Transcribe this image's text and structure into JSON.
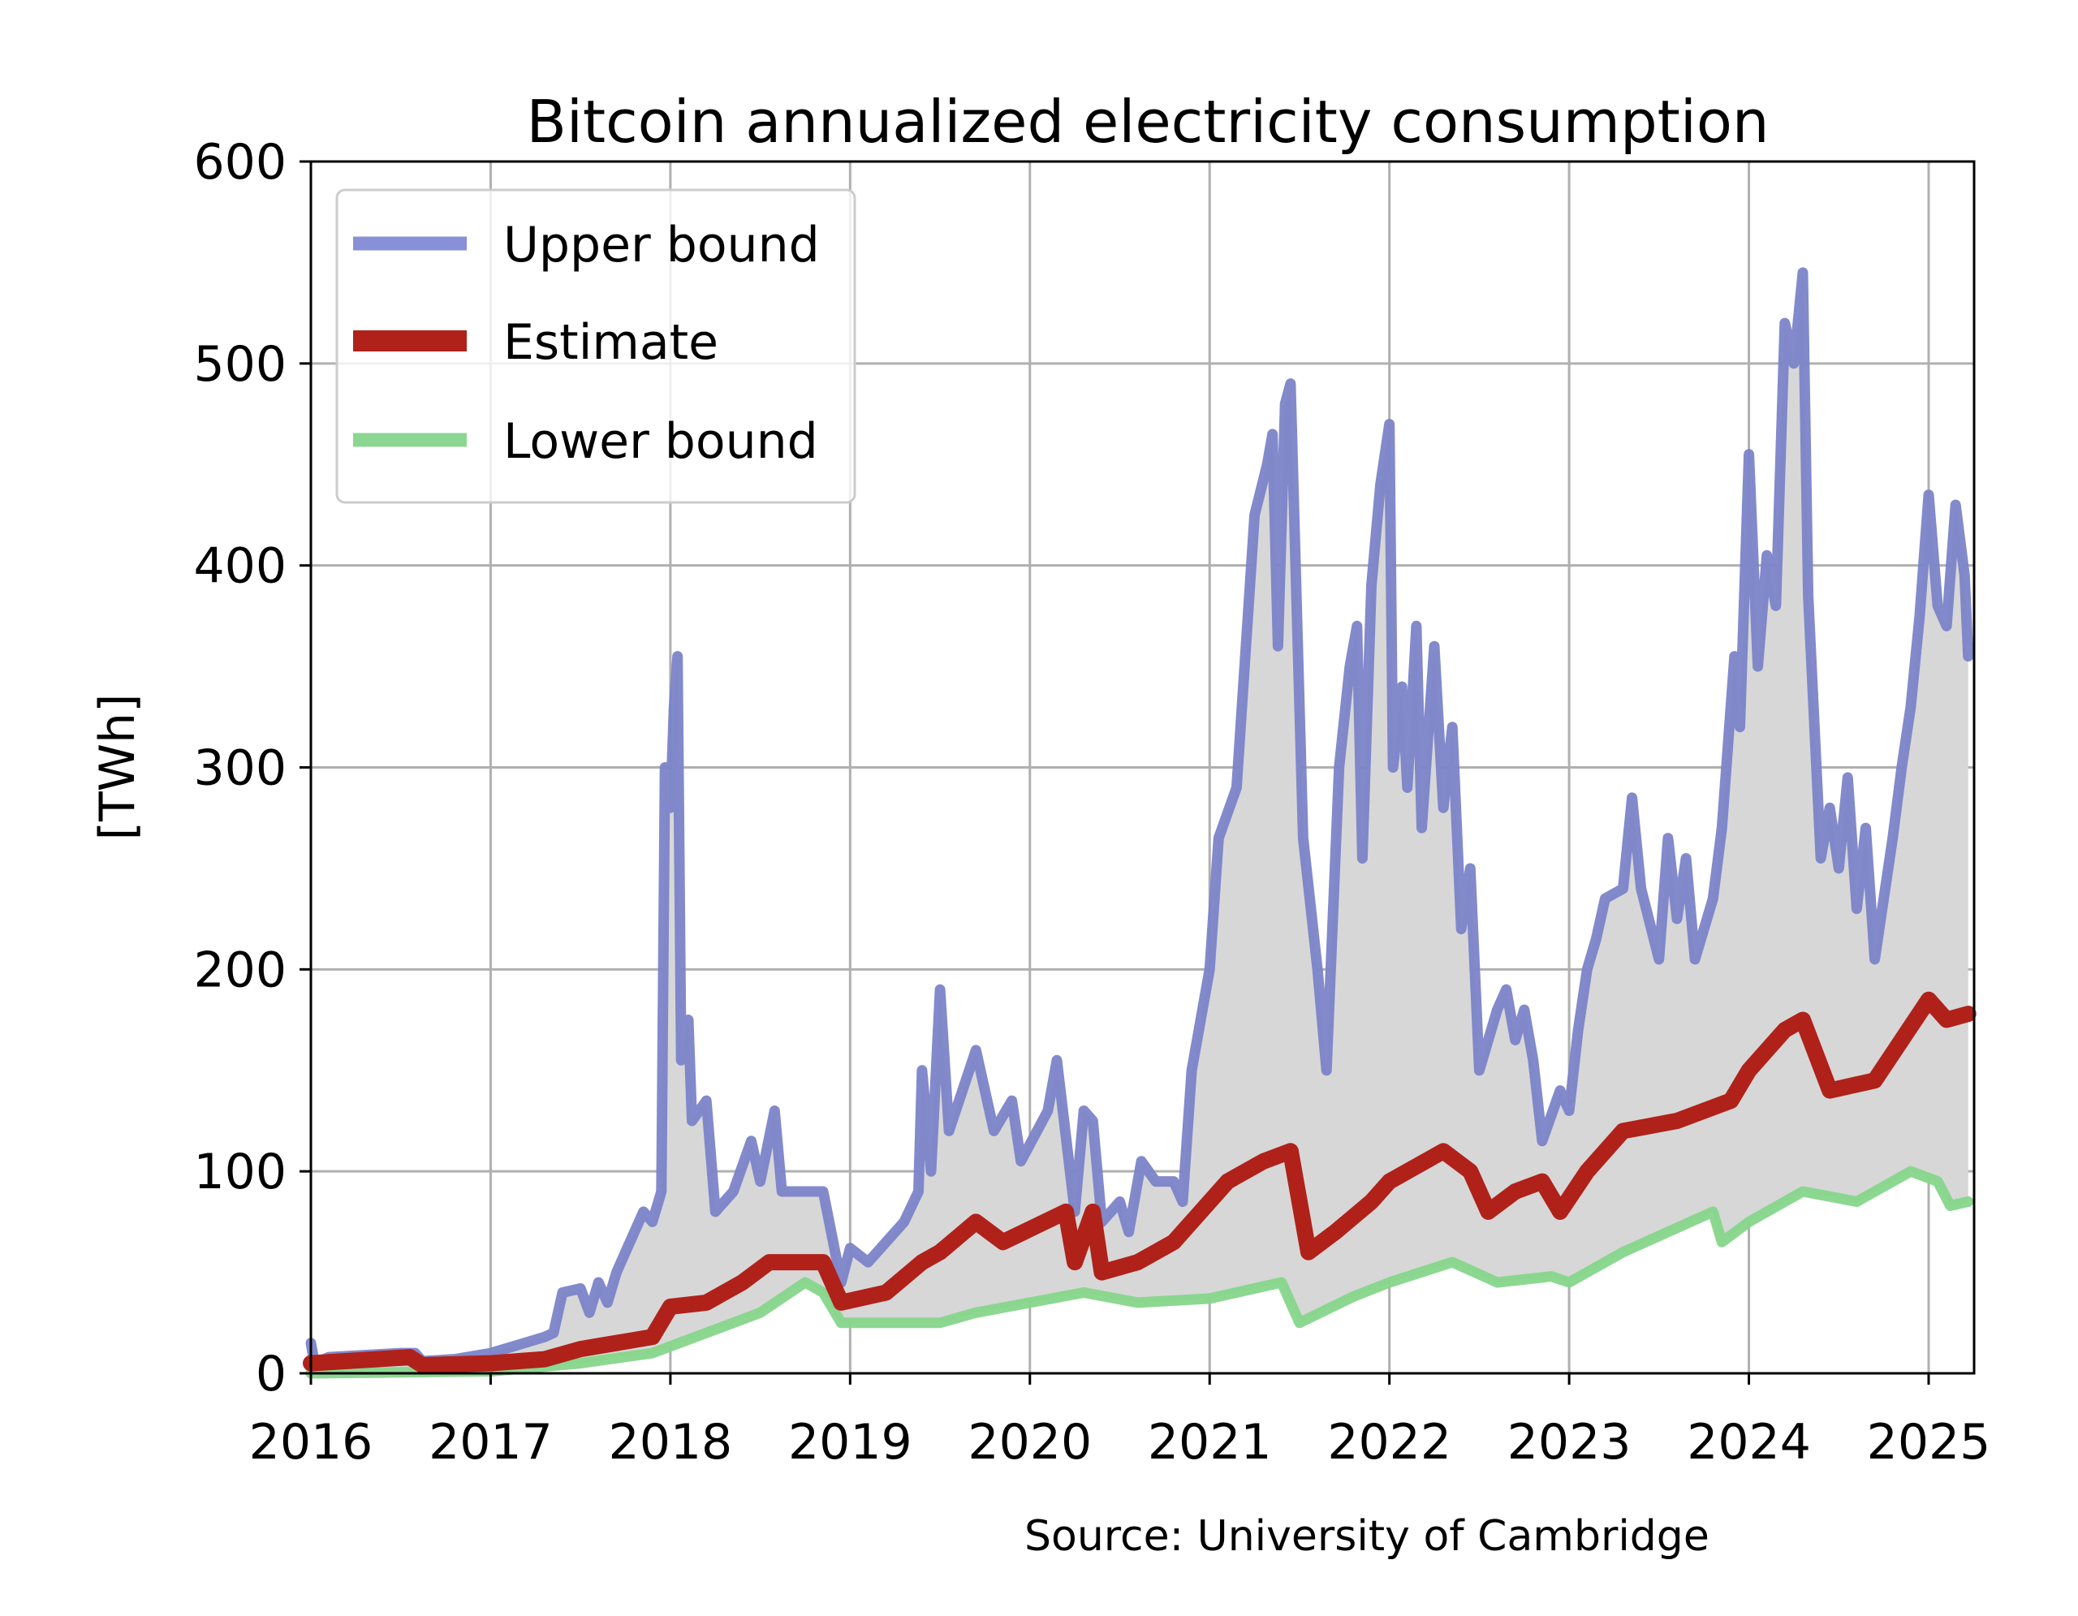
{
  "chart_data": {
    "type": "line",
    "title": "Bitcoin annualized electricity consumption",
    "xlabel": "",
    "ylabel": "[TWh]",
    "xlim": [
      2016,
      2025.25
    ],
    "ylim": [
      0,
      600
    ],
    "xticks": [
      "2016",
      "2017",
      "2018",
      "2019",
      "2020",
      "2021",
      "2022",
      "2023",
      "2024",
      "2025"
    ],
    "yticks": [
      "0",
      "100",
      "200",
      "300",
      "400",
      "500",
      "600"
    ],
    "grid": true,
    "legend_position": "top-left",
    "fill_between": [
      "Lower bound",
      "Upper bound"
    ],
    "annotation": "Source: University of Cambridge",
    "series": [
      {
        "name": "Upper bound",
        "color": "#7b84c9",
        "points": [
          [
            2016.0,
            15
          ],
          [
            2016.02,
            5
          ],
          [
            2016.1,
            8
          ],
          [
            2016.3,
            9
          ],
          [
            2016.5,
            10
          ],
          [
            2016.58,
            10
          ],
          [
            2016.62,
            6
          ],
          [
            2016.8,
            7
          ],
          [
            2017.0,
            10
          ],
          [
            2017.15,
            14
          ],
          [
            2017.3,
            18
          ],
          [
            2017.35,
            20
          ],
          [
            2017.4,
            40
          ],
          [
            2017.5,
            42
          ],
          [
            2017.55,
            30
          ],
          [
            2017.6,
            45
          ],
          [
            2017.65,
            35
          ],
          [
            2017.7,
            50
          ],
          [
            2017.75,
            60
          ],
          [
            2017.85,
            80
          ],
          [
            2017.9,
            75
          ],
          [
            2017.95,
            90
          ],
          [
            2017.97,
            300
          ],
          [
            2018.0,
            280
          ],
          [
            2018.02,
            330
          ],
          [
            2018.04,
            355
          ],
          [
            2018.06,
            155
          ],
          [
            2018.1,
            175
          ],
          [
            2018.12,
            125
          ],
          [
            2018.2,
            135
          ],
          [
            2018.25,
            80
          ],
          [
            2018.35,
            90
          ],
          [
            2018.45,
            115
          ],
          [
            2018.5,
            95
          ],
          [
            2018.58,
            130
          ],
          [
            2018.62,
            90
          ],
          [
            2018.7,
            90
          ],
          [
            2018.85,
            90
          ],
          [
            2018.95,
            45
          ],
          [
            2019.0,
            62
          ],
          [
            2019.1,
            55
          ],
          [
            2019.2,
            65
          ],
          [
            2019.3,
            75
          ],
          [
            2019.38,
            90
          ],
          [
            2019.4,
            150
          ],
          [
            2019.45,
            100
          ],
          [
            2019.5,
            190
          ],
          [
            2019.55,
            120
          ],
          [
            2019.7,
            160
          ],
          [
            2019.8,
            120
          ],
          [
            2019.9,
            135
          ],
          [
            2019.95,
            105
          ],
          [
            2020.1,
            130
          ],
          [
            2020.15,
            155
          ],
          [
            2020.25,
            80
          ],
          [
            2020.3,
            130
          ],
          [
            2020.35,
            125
          ],
          [
            2020.4,
            75
          ],
          [
            2020.5,
            85
          ],
          [
            2020.55,
            70
          ],
          [
            2020.62,
            105
          ],
          [
            2020.7,
            95
          ],
          [
            2020.8,
            95
          ],
          [
            2020.85,
            85
          ],
          [
            2020.9,
            150
          ],
          [
            2021.0,
            200
          ],
          [
            2021.05,
            265
          ],
          [
            2021.15,
            290
          ],
          [
            2021.25,
            425
          ],
          [
            2021.32,
            450
          ],
          [
            2021.35,
            465
          ],
          [
            2021.38,
            360
          ],
          [
            2021.42,
            480
          ],
          [
            2021.45,
            490
          ],
          [
            2021.52,
            265
          ],
          [
            2021.6,
            200
          ],
          [
            2021.65,
            150
          ],
          [
            2021.72,
            300
          ],
          [
            2021.78,
            350
          ],
          [
            2021.82,
            370
          ],
          [
            2021.85,
            255
          ],
          [
            2021.9,
            390
          ],
          [
            2021.95,
            440
          ],
          [
            2022.0,
            470
          ],
          [
            2022.02,
            300
          ],
          [
            2022.07,
            340
          ],
          [
            2022.1,
            290
          ],
          [
            2022.15,
            370
          ],
          [
            2022.18,
            270
          ],
          [
            2022.25,
            360
          ],
          [
            2022.3,
            280
          ],
          [
            2022.35,
            320
          ],
          [
            2022.4,
            220
          ],
          [
            2022.45,
            250
          ],
          [
            2022.5,
            150
          ],
          [
            2022.6,
            180
          ],
          [
            2022.65,
            190
          ],
          [
            2022.7,
            165
          ],
          [
            2022.75,
            180
          ],
          [
            2022.8,
            155
          ],
          [
            2022.85,
            115
          ],
          [
            2022.95,
            140
          ],
          [
            2023.0,
            130
          ],
          [
            2023.05,
            170
          ],
          [
            2023.1,
            200
          ],
          [
            2023.15,
            215
          ],
          [
            2023.2,
            235
          ],
          [
            2023.3,
            240
          ],
          [
            2023.35,
            285
          ],
          [
            2023.4,
            240
          ],
          [
            2023.5,
            205
          ],
          [
            2023.55,
            265
          ],
          [
            2023.6,
            225
          ],
          [
            2023.65,
            255
          ],
          [
            2023.7,
            205
          ],
          [
            2023.8,
            235
          ],
          [
            2023.85,
            270
          ],
          [
            2023.92,
            355
          ],
          [
            2023.95,
            320
          ],
          [
            2024.0,
            455
          ],
          [
            2024.05,
            350
          ],
          [
            2024.1,
            405
          ],
          [
            2024.15,
            380
          ],
          [
            2024.2,
            520
          ],
          [
            2024.25,
            500
          ],
          [
            2024.3,
            545
          ],
          [
            2024.33,
            385
          ],
          [
            2024.4,
            255
          ],
          [
            2024.45,
            280
          ],
          [
            2024.5,
            250
          ],
          [
            2024.55,
            295
          ],
          [
            2024.6,
            230
          ],
          [
            2024.65,
            270
          ],
          [
            2024.7,
            205
          ],
          [
            2024.8,
            265
          ],
          [
            2024.85,
            300
          ],
          [
            2024.9,
            330
          ],
          [
            2024.95,
            375
          ],
          [
            2025.0,
            435
          ],
          [
            2025.05,
            380
          ],
          [
            2025.1,
            370
          ],
          [
            2025.15,
            430
          ],
          [
            2025.2,
            395
          ],
          [
            2025.22,
            355
          ]
        ]
      },
      {
        "name": "Estimate",
        "color": "#b0211a",
        "points": [
          [
            2016.0,
            5
          ],
          [
            2016.55,
            8
          ],
          [
            2016.62,
            4
          ],
          [
            2017.0,
            5
          ],
          [
            2017.3,
            7
          ],
          [
            2017.5,
            12
          ],
          [
            2017.9,
            18
          ],
          [
            2018.0,
            33
          ],
          [
            2018.2,
            35
          ],
          [
            2018.4,
            45
          ],
          [
            2018.55,
            55
          ],
          [
            2018.85,
            55
          ],
          [
            2018.95,
            35
          ],
          [
            2019.2,
            40
          ],
          [
            2019.4,
            55
          ],
          [
            2019.5,
            60
          ],
          [
            2019.7,
            75
          ],
          [
            2019.85,
            65
          ],
          [
            2020.2,
            80
          ],
          [
            2020.25,
            55
          ],
          [
            2020.35,
            80
          ],
          [
            2020.4,
            50
          ],
          [
            2020.6,
            55
          ],
          [
            2020.8,
            65
          ],
          [
            2020.9,
            75
          ],
          [
            2021.1,
            95
          ],
          [
            2021.3,
            105
          ],
          [
            2021.45,
            110
          ],
          [
            2021.55,
            60
          ],
          [
            2021.7,
            70
          ],
          [
            2021.9,
            85
          ],
          [
            2022.0,
            95
          ],
          [
            2022.3,
            110
          ],
          [
            2022.45,
            100
          ],
          [
            2022.55,
            80
          ],
          [
            2022.7,
            90
          ],
          [
            2022.85,
            95
          ],
          [
            2022.95,
            80
          ],
          [
            2023.1,
            100
          ],
          [
            2023.3,
            120
          ],
          [
            2023.6,
            125
          ],
          [
            2023.9,
            135
          ],
          [
            2024.0,
            150
          ],
          [
            2024.2,
            170
          ],
          [
            2024.3,
            175
          ],
          [
            2024.45,
            140
          ],
          [
            2024.7,
            145
          ],
          [
            2024.85,
            165
          ],
          [
            2025.0,
            185
          ],
          [
            2025.1,
            175
          ],
          [
            2025.22,
            178
          ]
        ]
      },
      {
        "name": "Lower bound",
        "color": "#86d68b",
        "points": [
          [
            2016.0,
            0
          ],
          [
            2017.0,
            1
          ],
          [
            2017.5,
            5
          ],
          [
            2017.9,
            10
          ],
          [
            2018.2,
            20
          ],
          [
            2018.5,
            30
          ],
          [
            2018.75,
            45
          ],
          [
            2018.85,
            40
          ],
          [
            2018.95,
            25
          ],
          [
            2019.5,
            25
          ],
          [
            2019.7,
            30
          ],
          [
            2020.0,
            35
          ],
          [
            2020.3,
            40
          ],
          [
            2020.6,
            35
          ],
          [
            2021.0,
            37
          ],
          [
            2021.4,
            45
          ],
          [
            2021.5,
            25
          ],
          [
            2021.8,
            38
          ],
          [
            2022.0,
            45
          ],
          [
            2022.35,
            55
          ],
          [
            2022.6,
            45
          ],
          [
            2022.9,
            48
          ],
          [
            2023.0,
            45
          ],
          [
            2023.3,
            60
          ],
          [
            2023.8,
            80
          ],
          [
            2023.85,
            65
          ],
          [
            2024.0,
            75
          ],
          [
            2024.3,
            90
          ],
          [
            2024.6,
            85
          ],
          [
            2024.9,
            100
          ],
          [
            2025.05,
            95
          ],
          [
            2025.12,
            83
          ],
          [
            2025.22,
            85
          ]
        ]
      }
    ]
  }
}
